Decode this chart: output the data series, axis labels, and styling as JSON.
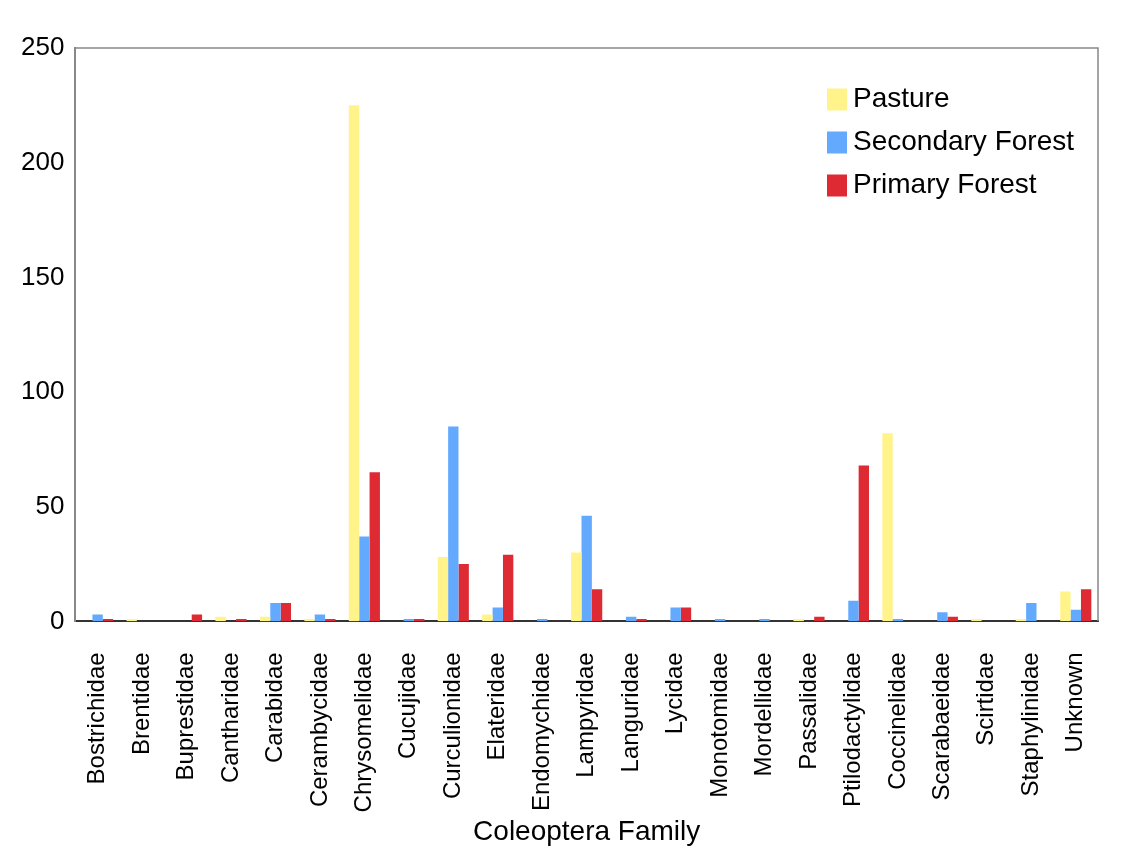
{
  "chart_data": {
    "type": "bar",
    "xlabel": "Coleoptera Family",
    "categories": [
      "Bostrichidae",
      "Brentidae",
      "Buprestidae",
      "Cantharidae",
      "Carabidae",
      "Cerambycidae",
      "Chrysomelidae",
      "Cucujidae",
      "Curculionidae",
      "Elateridae",
      "Endomychidae",
      "Lampyridae",
      "Languridae",
      "Lycidae",
      "Monotomidae",
      "Mordellidae",
      "Passalidae",
      "Ptilodactylidae",
      "Coccinelidae",
      "Scarabaeidae",
      "Scirtidae",
      "Staphylinidae",
      "Unknown"
    ],
    "series": [
      {
        "name": "Pasture",
        "color": "#fff38a",
        "values": [
          0,
          1,
          0,
          2,
          2,
          1,
          225,
          0,
          28,
          3,
          0,
          30,
          0,
          0,
          0,
          0,
          1,
          0,
          82,
          0,
          1,
          1,
          13
        ]
      },
      {
        "name": "Secondary Forest",
        "color": "#63aaff",
        "values": [
          3,
          0,
          0,
          0,
          8,
          3,
          37,
          1,
          85,
          6,
          1,
          46,
          2,
          6,
          1,
          1,
          0,
          9,
          1,
          4,
          0,
          8,
          5
        ]
      },
      {
        "name": "Primary Forest",
        "color": "#de2b33",
        "values": [
          1,
          0,
          3,
          1,
          8,
          1,
          65,
          1,
          25,
          29,
          0,
          14,
          1,
          6,
          0,
          0,
          2,
          68,
          0,
          2,
          0,
          0,
          14
        ]
      }
    ],
    "ylim": [
      0,
      250
    ],
    "yticks": [
      0,
      50,
      100,
      150,
      200,
      250
    ],
    "grid": false,
    "legend": "top right"
  }
}
